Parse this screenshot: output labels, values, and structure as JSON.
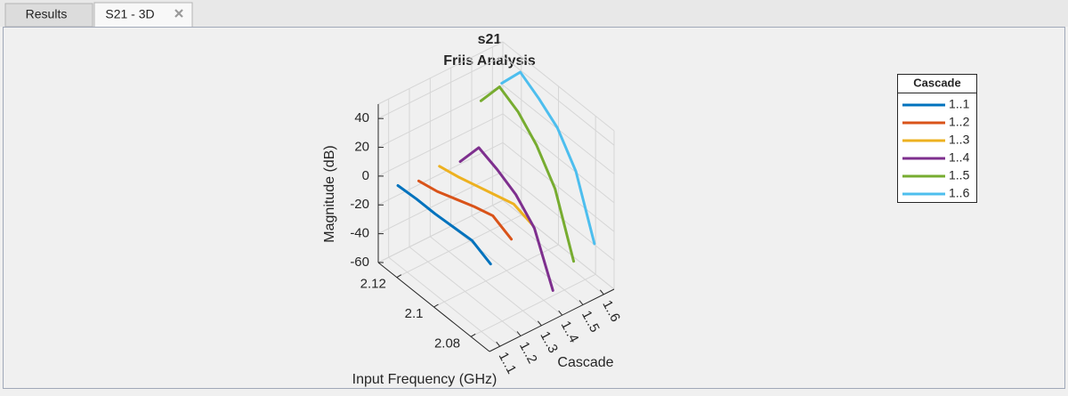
{
  "tabs": [
    "Results",
    "S21 - 3D"
  ],
  "chart_data": {
    "type": "line3d",
    "title": "s21",
    "subtitle": "Friis Analysis",
    "xlabel": "Input Frequency (GHz)",
    "ylabel": "Cascade",
    "zlabel": "Magnitude (dB)",
    "legend_title": "Cascade",
    "legend": "upper right",
    "grid": true,
    "x": [
      2.075,
      2.085,
      2.095,
      2.105,
      2.115,
      2.125
    ],
    "xlim": [
      2.07,
      2.13
    ],
    "xticks": [
      2.08,
      2.1,
      2.12
    ],
    "categories": [
      "1..1",
      "1..2",
      "1..3",
      "1..4",
      "1..5",
      "1..6"
    ],
    "zlim": [
      -60,
      50
    ],
    "zticks": [
      -60,
      -40,
      -20,
      0,
      20,
      40
    ],
    "series": [
      {
        "name": "1..1",
        "color": "#0072bd",
        "values": [
          -8,
          -2,
          -3,
          -4,
          -4,
          -5
        ]
      },
      {
        "name": "1..2",
        "color": "#d95319",
        "values": [
          2,
          8,
          4,
          -1,
          -6,
          -9
        ]
      },
      {
        "name": "1..3",
        "color": "#edb120",
        "values": [
          5,
          9,
          5,
          1,
          -3,
          -6
        ]
      },
      {
        "name": "1..4",
        "color": "#7e2f8e",
        "values": [
          -48,
          -15,
          -2,
          5,
          10,
          -10
        ]
      },
      {
        "name": "1..5",
        "color": "#77ac30",
        "values": [
          -35,
          5,
          25,
          38,
          45,
          25
        ]
      },
      {
        "name": "1..6",
        "color": "#4dbeee",
        "values": [
          -30,
          10,
          30,
          40,
          48,
          30
        ]
      }
    ]
  }
}
